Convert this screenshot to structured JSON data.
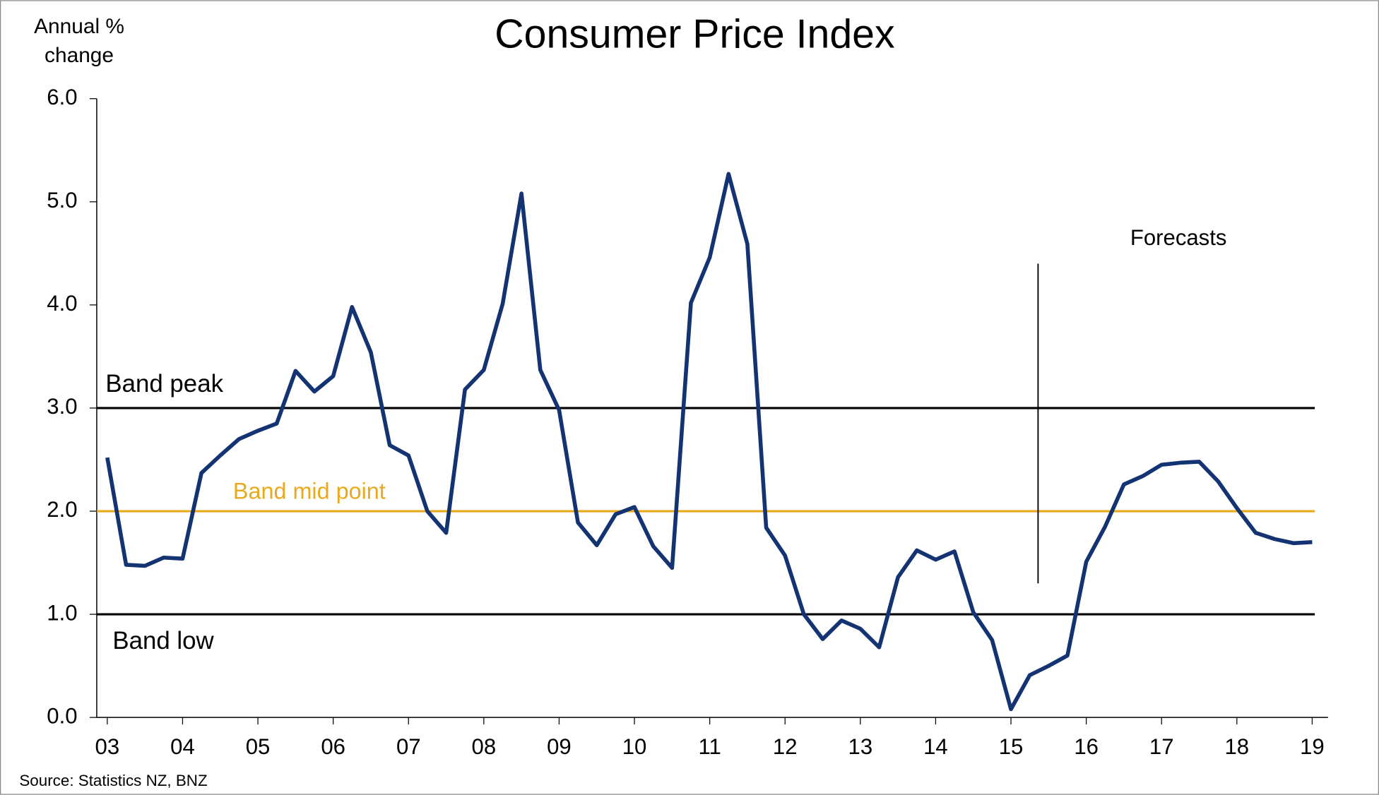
{
  "chart_data": {
    "type": "line",
    "title": "Consumer Price Index",
    "ylabel": [
      "Annual %",
      "change"
    ],
    "source": "Source: Statistics NZ, BNZ",
    "x": [
      2003,
      2003.25,
      2003.5,
      2003.75,
      2004,
      2004.25,
      2004.5,
      2004.75,
      2005,
      2005.25,
      2005.5,
      2005.75,
      2006,
      2006.25,
      2006.5,
      2006.75,
      2007,
      2007.25,
      2007.5,
      2007.75,
      2008,
      2008.25,
      2008.5,
      2008.75,
      2009,
      2009.25,
      2009.5,
      2009.75,
      2010,
      2010.25,
      2010.5,
      2010.75,
      2011,
      2011.25,
      2011.5,
      2011.75,
      2012,
      2012.25,
      2012.5,
      2012.75,
      2013,
      2013.25,
      2013.5,
      2013.75,
      2014,
      2014.25,
      2014.5,
      2014.75,
      2015,
      2015.25,
      2015.5,
      2015.75,
      2016,
      2016.25,
      2016.5,
      2016.75,
      2017,
      2017.25,
      2017.5,
      2017.75,
      2018,
      2018.25,
      2018.5,
      2018.75,
      2019
    ],
    "series": [
      {
        "name": "CPI",
        "color": "#143372",
        "values": [
          2.52,
          1.48,
          1.47,
          1.55,
          1.54,
          2.37,
          2.54,
          2.7,
          2.78,
          2.85,
          3.36,
          3.16,
          3.31,
          3.98,
          3.54,
          2.64,
          2.54,
          2.0,
          1.79,
          3.18,
          3.37,
          4.01,
          5.08,
          3.37,
          2.98,
          1.89,
          1.67,
          1.97,
          2.04,
          1.66,
          1.45,
          4.02,
          4.46,
          5.27,
          4.59,
          1.84,
          1.57,
          1.0,
          0.76,
          0.94,
          0.86,
          0.68,
          1.36,
          1.62,
          1.53,
          1.61,
          1.02,
          0.75,
          0.08,
          0.41,
          0.5,
          0.6,
          1.51,
          1.85,
          2.26,
          2.34,
          2.45,
          2.47,
          2.48,
          2.29,
          2.03,
          1.79,
          1.73,
          1.69,
          1.7
        ]
      }
    ],
    "reference_lines": [
      {
        "label": "Band peak",
        "value": 3.0,
        "color": "#000000"
      },
      {
        "label": "Band mid point",
        "value": 2.0,
        "color": "#e8a91c"
      },
      {
        "label": "Band low",
        "value": 1.0,
        "color": "#000000"
      }
    ],
    "forecast_line": {
      "label": "Forecasts",
      "x": 2015.36,
      "y": [
        1.3,
        4.4
      ]
    },
    "xlim": [
      2002.86,
      2019.21
    ],
    "xticks": [
      {
        "value": 2003,
        "label": "03"
      },
      {
        "value": 2004,
        "label": "04"
      },
      {
        "value": 2005,
        "label": "05"
      },
      {
        "value": 2006,
        "label": "06"
      },
      {
        "value": 2007,
        "label": "07"
      },
      {
        "value": 2008,
        "label": "08"
      },
      {
        "value": 2009,
        "label": "09"
      },
      {
        "value": 2010,
        "label": "10"
      },
      {
        "value": 2011,
        "label": "11"
      },
      {
        "value": 2012,
        "label": "12"
      },
      {
        "value": 2013,
        "label": "13"
      },
      {
        "value": 2014,
        "label": "14"
      },
      {
        "value": 2015,
        "label": "15"
      },
      {
        "value": 2016,
        "label": "16"
      },
      {
        "value": 2017,
        "label": "17"
      },
      {
        "value": 2018,
        "label": "18"
      },
      {
        "value": 2019,
        "label": "19"
      }
    ],
    "ylim": [
      0,
      6
    ],
    "yticks": [
      {
        "value": 0,
        "label": "0.0"
      },
      {
        "value": 1,
        "label": "1.0"
      },
      {
        "value": 2,
        "label": "2.0"
      },
      {
        "value": 3,
        "label": "3.0"
      },
      {
        "value": 4,
        "label": "4.0"
      },
      {
        "value": 5,
        "label": "5.0"
      },
      {
        "value": 6,
        "label": "6.0"
      }
    ],
    "grid": false
  }
}
